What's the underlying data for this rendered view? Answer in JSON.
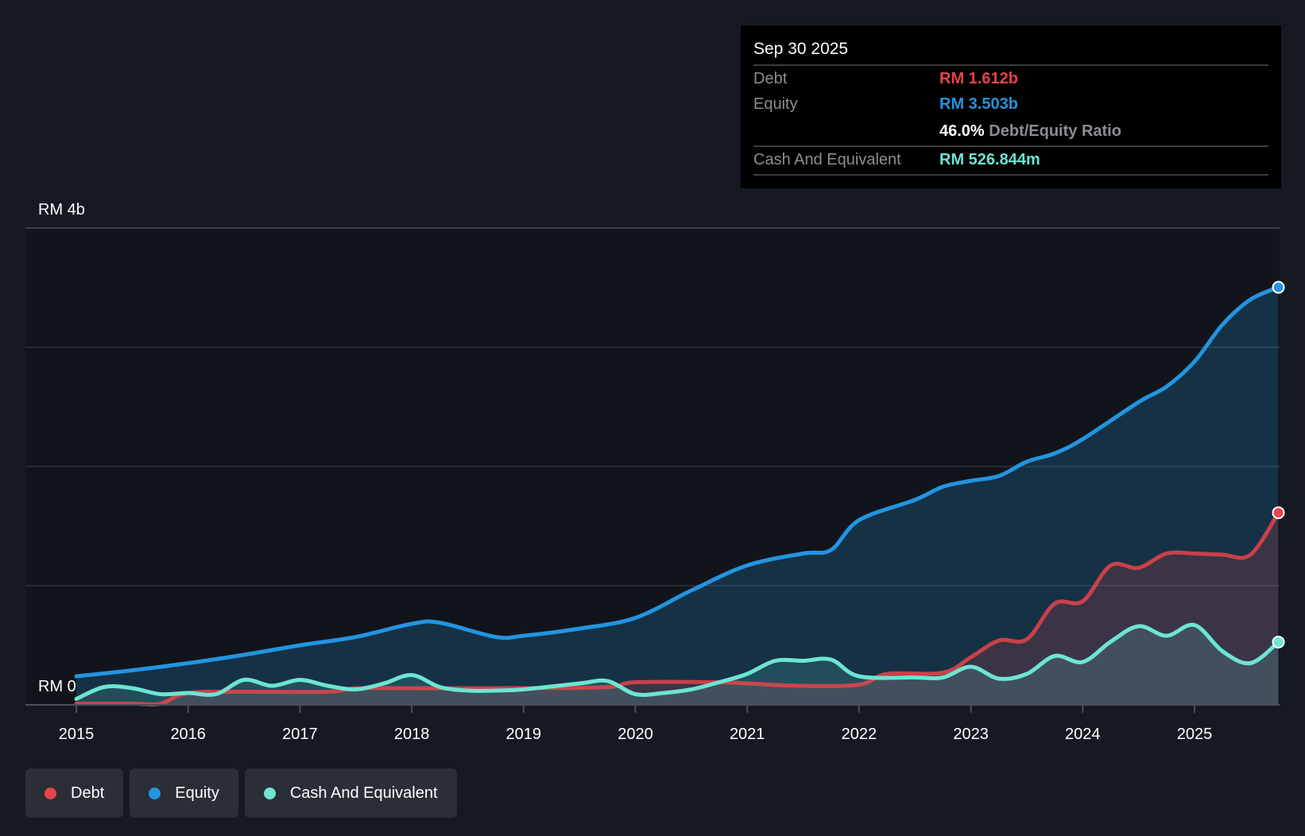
{
  "chart_data": {
    "type": "area",
    "title": "",
    "xlabel": "",
    "ylabel": "",
    "ylim": [
      0,
      4
    ],
    "y_unit": "RM b",
    "y_tick_labels": [
      "RM 0",
      "RM 4b"
    ],
    "x_tick_labels": [
      "2015",
      "2016",
      "2017",
      "2018",
      "2019",
      "2020",
      "2021",
      "2022",
      "2023",
      "2024",
      "2025"
    ],
    "xlim": [
      2015,
      2025.75
    ],
    "grid": true,
    "legend_position": "bottom-left",
    "series": [
      {
        "name": "Debt",
        "color": "#e5444a",
        "points": [
          [
            2015,
            0.01
          ],
          [
            2015.5,
            0.01
          ],
          [
            2015.75,
            0.01
          ],
          [
            2016,
            0.1
          ],
          [
            2016.5,
            0.11
          ],
          [
            2017.25,
            0.11
          ],
          [
            2017.5,
            0.14
          ],
          [
            2018,
            0.14
          ],
          [
            2019,
            0.14
          ],
          [
            2019.75,
            0.15
          ],
          [
            2020,
            0.19
          ],
          [
            2020.75,
            0.19
          ],
          [
            2021,
            0.18
          ],
          [
            2021.5,
            0.16
          ],
          [
            2022,
            0.17
          ],
          [
            2022.25,
            0.26
          ],
          [
            2022.75,
            0.27
          ],
          [
            2023,
            0.4
          ],
          [
            2023.25,
            0.54
          ],
          [
            2023.5,
            0.55
          ],
          [
            2023.75,
            0.85
          ],
          [
            2024,
            0.87
          ],
          [
            2024.25,
            1.17
          ],
          [
            2024.5,
            1.15
          ],
          [
            2024.75,
            1.27
          ],
          [
            2025,
            1.27
          ],
          [
            2025.25,
            1.26
          ],
          [
            2025.5,
            1.26
          ],
          [
            2025.75,
            1.612
          ]
        ]
      },
      {
        "name": "Equity",
        "color": "#2394e0",
        "points": [
          [
            2015,
            0.24
          ],
          [
            2015.5,
            0.29
          ],
          [
            2016,
            0.35
          ],
          [
            2016.5,
            0.42
          ],
          [
            2017,
            0.5
          ],
          [
            2017.5,
            0.57
          ],
          [
            2018,
            0.68
          ],
          [
            2018.25,
            0.69
          ],
          [
            2018.75,
            0.57
          ],
          [
            2019,
            0.58
          ],
          [
            2019.5,
            0.64
          ],
          [
            2020,
            0.73
          ],
          [
            2020.5,
            0.96
          ],
          [
            2021,
            1.17
          ],
          [
            2021.5,
            1.27
          ],
          [
            2021.75,
            1.3
          ],
          [
            2022,
            1.55
          ],
          [
            2022.5,
            1.72
          ],
          [
            2022.75,
            1.83
          ],
          [
            2023,
            1.88
          ],
          [
            2023.25,
            1.92
          ],
          [
            2023.5,
            2.04
          ],
          [
            2023.75,
            2.11
          ],
          [
            2024,
            2.23
          ],
          [
            2024.5,
            2.54
          ],
          [
            2024.75,
            2.67
          ],
          [
            2025,
            2.88
          ],
          [
            2025.25,
            3.19
          ],
          [
            2025.5,
            3.4
          ],
          [
            2025.75,
            3.503
          ]
        ]
      },
      {
        "name": "Cash And Equivalent",
        "color": "#6ce5d3",
        "points": [
          [
            2015,
            0.05
          ],
          [
            2015.25,
            0.15
          ],
          [
            2015.5,
            0.14
          ],
          [
            2015.75,
            0.09
          ],
          [
            2016,
            0.1
          ],
          [
            2016.25,
            0.09
          ],
          [
            2016.5,
            0.21
          ],
          [
            2016.75,
            0.16
          ],
          [
            2017,
            0.21
          ],
          [
            2017.25,
            0.16
          ],
          [
            2017.5,
            0.13
          ],
          [
            2017.75,
            0.18
          ],
          [
            2018,
            0.25
          ],
          [
            2018.25,
            0.15
          ],
          [
            2018.5,
            0.12
          ],
          [
            2018.75,
            0.12
          ],
          [
            2019,
            0.13
          ],
          [
            2019.5,
            0.18
          ],
          [
            2019.75,
            0.2
          ],
          [
            2020,
            0.09
          ],
          [
            2020.25,
            0.1
          ],
          [
            2020.5,
            0.13
          ],
          [
            2020.75,
            0.19
          ],
          [
            2021,
            0.26
          ],
          [
            2021.25,
            0.37
          ],
          [
            2021.5,
            0.37
          ],
          [
            2021.75,
            0.38
          ],
          [
            2022,
            0.24
          ],
          [
            2022.5,
            0.23
          ],
          [
            2022.75,
            0.23
          ],
          [
            2023,
            0.32
          ],
          [
            2023.25,
            0.22
          ],
          [
            2023.5,
            0.26
          ],
          [
            2023.75,
            0.41
          ],
          [
            2024,
            0.36
          ],
          [
            2024.25,
            0.53
          ],
          [
            2024.5,
            0.66
          ],
          [
            2024.75,
            0.58
          ],
          [
            2025,
            0.67
          ],
          [
            2025.25,
            0.45
          ],
          [
            2025.5,
            0.35
          ],
          [
            2025.75,
            0.527
          ]
        ]
      }
    ]
  },
  "tooltip": {
    "date": "Sep 30 2025",
    "debt_label": "Debt",
    "debt_value": "RM 1.612b",
    "equity_label": "Equity",
    "equity_value": "RM 3.503b",
    "ratio_value": "46.0%",
    "ratio_label": "Debt/Equity Ratio",
    "cash_label": "Cash And Equivalent",
    "cash_value": "RM 526.844m"
  },
  "legend": [
    {
      "label": "Debt",
      "color": "#e5444a"
    },
    {
      "label": "Equity",
      "color": "#2394e0"
    },
    {
      "label": "Cash And Equivalent",
      "color": "#6ce5d3"
    }
  ]
}
